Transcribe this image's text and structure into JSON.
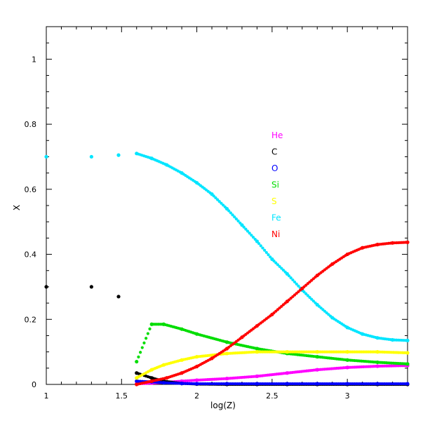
{
  "chart_data": {
    "type": "scatter",
    "title": "",
    "xlabel": "log(Z)",
    "ylabel": "X",
    "xlim": [
      1.0,
      3.4
    ],
    "ylim": [
      0.0,
      1.1
    ],
    "xticks": [
      {
        "value": 1,
        "label": "1"
      },
      {
        "value": 1.5,
        "label": "1.5"
      },
      {
        "value": 2,
        "label": "2"
      },
      {
        "value": 2.5,
        "label": "2.5"
      },
      {
        "value": 3,
        "label": "3"
      }
    ],
    "yticks": [
      {
        "value": 0,
        "label": "0"
      },
      {
        "value": 0.2,
        "label": "0.2"
      },
      {
        "value": 0.4,
        "label": "0.4"
      },
      {
        "value": 0.6,
        "label": "0.6"
      },
      {
        "value": 0.8,
        "label": "0.8"
      },
      {
        "value": 1,
        "label": "1"
      }
    ],
    "legend_position": "center",
    "series": [
      {
        "name": "He",
        "color": "#ff00ff",
        "x": [
          1.0,
          1.3,
          1.48,
          1.6,
          1.7,
          1.78,
          1.9,
          2.0,
          2.2,
          2.4,
          2.6,
          2.8,
          3.0,
          3.2,
          3.4
        ],
        "y": [
          0.0,
          0.0,
          0.0,
          0.002,
          0.004,
          0.006,
          0.01,
          0.013,
          0.018,
          0.025,
          0.035,
          0.045,
          0.052,
          0.056,
          0.058
        ]
      },
      {
        "name": "C",
        "color": "#000000",
        "x": [
          1.0,
          1.3,
          1.48,
          1.6,
          1.7,
          1.78,
          1.9,
          2.0,
          2.2,
          2.4,
          2.6,
          2.8,
          3.0,
          3.2,
          3.4
        ],
        "y": [
          0.3,
          0.3,
          0.27,
          0.035,
          0.02,
          0.01,
          0.003,
          0.001,
          0.0,
          0.0,
          0.0,
          0.0,
          0.0,
          0.0,
          0.0
        ]
      },
      {
        "name": "O",
        "color": "#0000ff",
        "x": [
          1.0,
          1.3,
          1.48,
          1.6,
          1.7,
          1.78,
          1.9,
          2.0,
          2.2,
          2.4,
          2.6,
          2.8,
          3.0,
          3.2,
          3.4
        ],
        "y": [
          0.0,
          0.0,
          0.0,
          0.01,
          0.008,
          0.005,
          0.003,
          0.002,
          0.002,
          0.002,
          0.002,
          0.002,
          0.002,
          0.002,
          0.002
        ]
      },
      {
        "name": "Si",
        "color": "#00dd00",
        "x": [
          1.0,
          1.3,
          1.48,
          1.6,
          1.7,
          1.78,
          1.9,
          2.0,
          2.2,
          2.4,
          2.6,
          2.8,
          3.0,
          3.2,
          3.4
        ],
        "y": [
          0.0,
          0.0,
          0.0,
          0.07,
          0.185,
          0.185,
          0.17,
          0.155,
          0.13,
          0.11,
          0.095,
          0.085,
          0.075,
          0.068,
          0.063
        ]
      },
      {
        "name": "S",
        "color": "#ffff00",
        "x": [
          1.0,
          1.3,
          1.48,
          1.6,
          1.7,
          1.78,
          1.9,
          2.0,
          2.2,
          2.4,
          2.6,
          2.8,
          3.0,
          3.2,
          3.4
        ],
        "y": [
          0.0,
          0.0,
          0.0,
          0.02,
          0.045,
          0.06,
          0.075,
          0.085,
          0.095,
          0.1,
          0.1,
          0.1,
          0.1,
          0.1,
          0.097
        ]
      },
      {
        "name": "Fe",
        "color": "#00e5ff",
        "x": [
          1.0,
          1.3,
          1.48,
          1.6,
          1.7,
          1.8,
          1.9,
          2.0,
          2.1,
          2.2,
          2.3,
          2.4,
          2.5,
          2.6,
          2.7,
          2.8,
          2.9,
          3.0,
          3.1,
          3.2,
          3.3,
          3.4
        ],
        "y": [
          0.7,
          0.7,
          0.705,
          0.71,
          0.695,
          0.675,
          0.65,
          0.62,
          0.585,
          0.54,
          0.49,
          0.44,
          0.385,
          0.34,
          0.29,
          0.245,
          0.205,
          0.175,
          0.155,
          0.143,
          0.137,
          0.135
        ]
      },
      {
        "name": "Ni",
        "color": "#ff0000",
        "x": [
          1.0,
          1.3,
          1.48,
          1.6,
          1.7,
          1.8,
          1.9,
          2.0,
          2.1,
          2.2,
          2.3,
          2.4,
          2.5,
          2.6,
          2.7,
          2.8,
          2.9,
          3.0,
          3.1,
          3.2,
          3.3,
          3.4
        ],
        "y": [
          0.0,
          0.0,
          0.0,
          0.0,
          0.01,
          0.02,
          0.035,
          0.055,
          0.08,
          0.11,
          0.145,
          0.18,
          0.215,
          0.255,
          0.295,
          0.335,
          0.37,
          0.4,
          0.42,
          0.43,
          0.435,
          0.437
        ]
      }
    ]
  }
}
